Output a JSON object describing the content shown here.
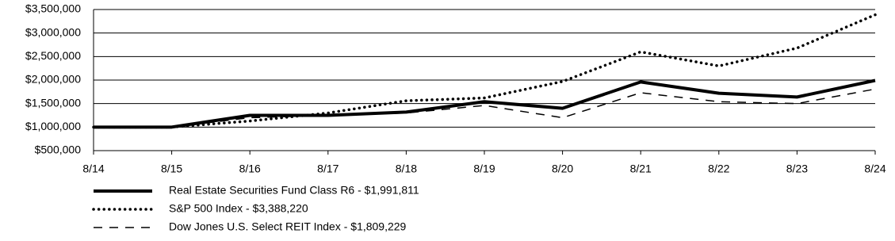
{
  "chart_data": {
    "type": "line",
    "categories": [
      "8/14",
      "8/15",
      "8/16",
      "8/17",
      "8/18",
      "8/19",
      "8/20",
      "8/21",
      "8/22",
      "8/23",
      "8/24"
    ],
    "series": [
      {
        "name": "Real Estate Securities Fund Class R6 - $1,991,811",
        "color": "#000000",
        "style": "solid",
        "values": [
          1000000,
          1000000,
          1250000,
          1250000,
          1320000,
          1540000,
          1400000,
          1960000,
          1720000,
          1640000,
          1991811
        ]
      },
      {
        "name": "S&P 500 Index - $3,388,220",
        "color": "#000000",
        "style": "dotted",
        "values": [
          1000000,
          1000000,
          1130000,
          1300000,
          1560000,
          1620000,
          1970000,
          2600000,
          2300000,
          2680000,
          3388220
        ]
      },
      {
        "name": "Dow Jones U.S. Select REIT Index - $1,809,229",
        "color": "#000000",
        "style": "dashed",
        "values": [
          1000000,
          1000000,
          1200000,
          1250000,
          1300000,
          1460000,
          1200000,
          1730000,
          1540000,
          1500000,
          1809229
        ]
      }
    ],
    "ylim": [
      500000,
      3500000
    ],
    "yticks": [
      {
        "value": 500000,
        "label": "$500,000"
      },
      {
        "value": 1000000,
        "label": "$1,000,000"
      },
      {
        "value": 1500000,
        "label": "$1,500,000"
      },
      {
        "value": 2000000,
        "label": "$2,000,000"
      },
      {
        "value": 2500000,
        "label": "$2,500,000"
      },
      {
        "value": 3000000,
        "label": "$3,000,000"
      },
      {
        "value": 3500000,
        "label": "$3,500,000"
      }
    ],
    "grid": true
  }
}
